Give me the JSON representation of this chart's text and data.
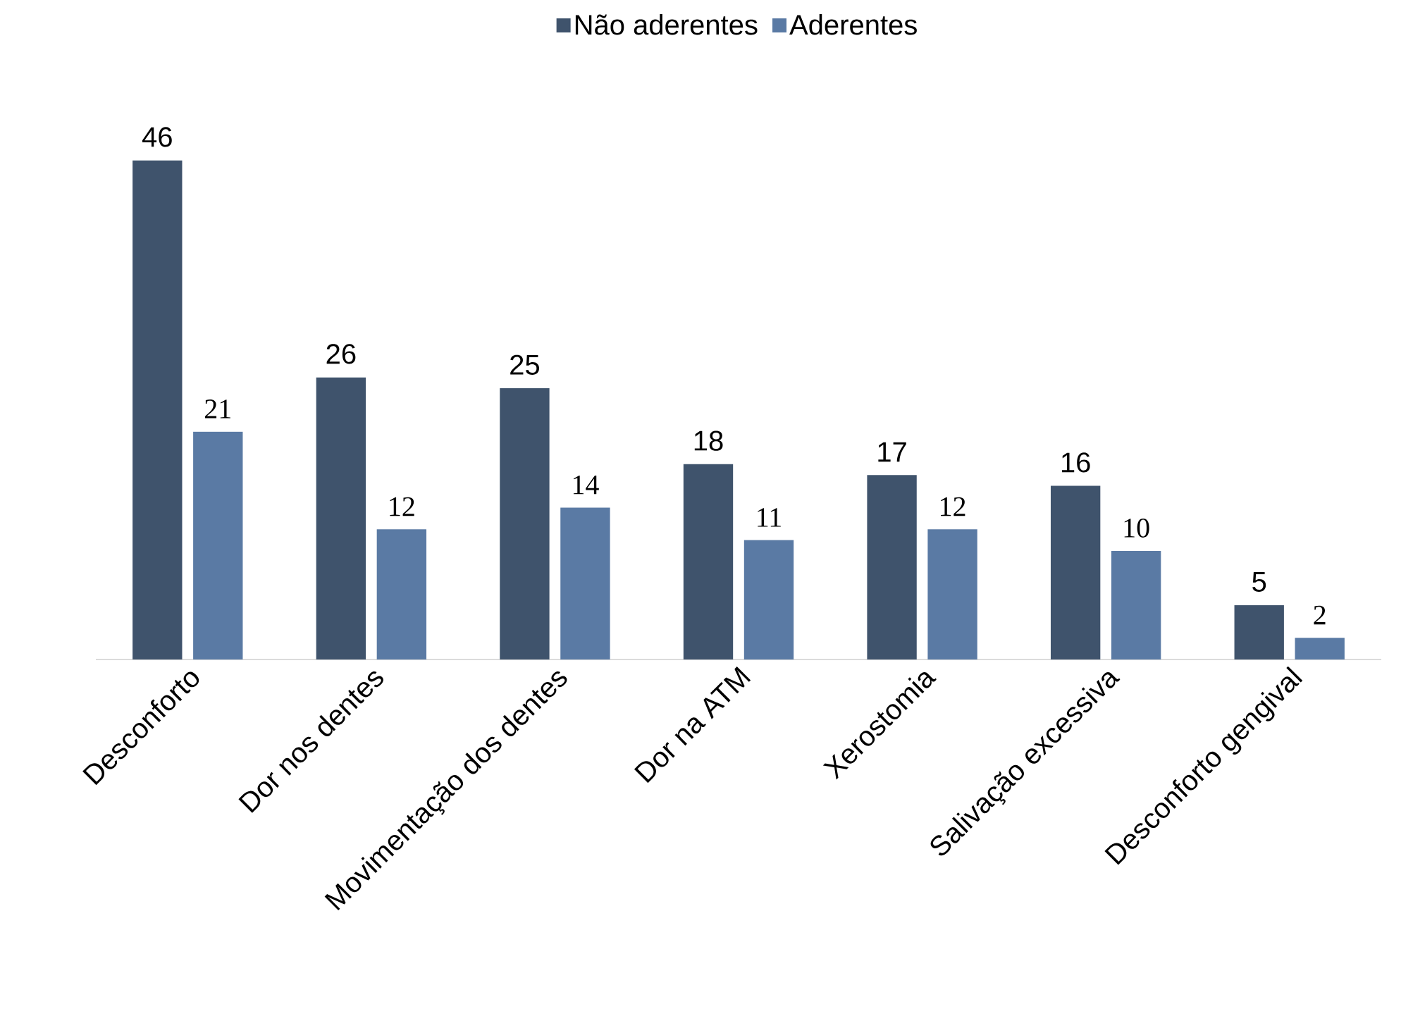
{
  "chart_data": {
    "type": "bar",
    "categories": [
      "Desconforto",
      "Dor nos dentes",
      "Movimentação dos dentes",
      "Dor na ATM",
      "Xerostomia",
      "Salivação excessiva",
      "Desconforto gengival"
    ],
    "series": [
      {
        "name": "Não aderentes",
        "color": "#3f536c",
        "values": [
          46,
          26,
          25,
          18,
          17,
          16,
          5
        ]
      },
      {
        "name": "Aderentes",
        "color": "#5a7aa4",
        "values": [
          21,
          12,
          14,
          11,
          12,
          10,
          2
        ]
      }
    ],
    "data_labels": true,
    "legend": "top"
  }
}
